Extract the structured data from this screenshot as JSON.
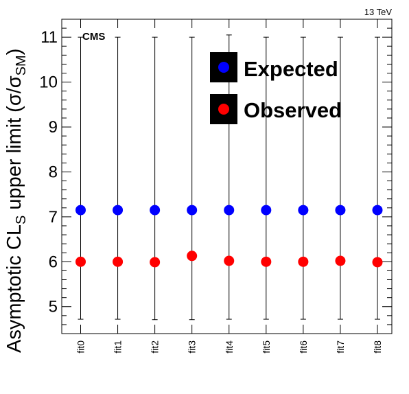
{
  "chart_data": {
    "type": "scatter",
    "categories": [
      "fit0",
      "fit1",
      "fit2",
      "fit3",
      "fit4",
      "fit5",
      "fit6",
      "fit7",
      "fit8"
    ],
    "series": [
      {
        "name": "Expected",
        "color": "#0000ff",
        "values": [
          7.15,
          7.15,
          7.15,
          7.15,
          7.15,
          7.15,
          7.15,
          7.15,
          7.15
        ],
        "err_low": [
          4.72,
          4.72,
          4.71,
          4.71,
          4.72,
          4.72,
          4.72,
          4.72,
          4.72
        ],
        "err_high": [
          11.0,
          11.0,
          11.0,
          11.0,
          11.05,
          11.0,
          11.0,
          11.0,
          11.0
        ]
      },
      {
        "name": "Observed",
        "color": "#ff0000",
        "values": [
          6.0,
          6.0,
          5.99,
          6.13,
          6.02,
          6.0,
          6.0,
          6.02,
          5.99
        ]
      }
    ],
    "ylim": [
      4.4,
      11.4
    ],
    "yticks": [
      "5",
      "6",
      "7",
      "8",
      "9",
      "10",
      "11"
    ],
    "ylabel_main": "Asymptotic CL",
    "ylabel_sub": "S",
    "ylabel_rest": " upper limit (σ/σ",
    "ylabel_sub2": "SM",
    "ylabel_end": ")",
    "energy_label": "13 TeV",
    "experiment_label": "CMS",
    "legend_placement": "top-right",
    "grid": false
  }
}
